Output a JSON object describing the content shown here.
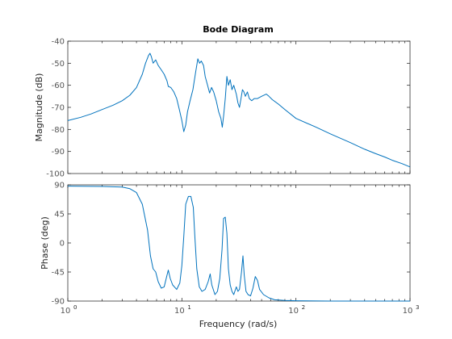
{
  "chart_data": {
    "type": "line",
    "title": "Bode Diagram",
    "xlabel": "Frequency  (rad/s)",
    "x_scale": "log",
    "xlim": [
      1,
      1000
    ],
    "x_ticks": [
      {
        "value": 1,
        "base": "10",
        "exp": "0"
      },
      {
        "value": 10,
        "base": "10",
        "exp": "1"
      },
      {
        "value": 100,
        "base": "10",
        "exp": "2"
      },
      {
        "value": 1000,
        "base": "10",
        "exp": "3"
      }
    ],
    "line_color": "#0072bd",
    "grid": false,
    "legend": "none",
    "panels": [
      {
        "id": "magnitude",
        "ylabel": "Magnitude (dB)",
        "ylim": [
          -100,
          -40
        ],
        "yticks": [
          -40,
          -50,
          -60,
          -70,
          -80,
          -90,
          -100
        ],
        "points": [
          [
            1,
            -76
          ],
          [
            1.3,
            -74.5
          ],
          [
            1.6,
            -73
          ],
          [
            2,
            -71
          ],
          [
            2.5,
            -69
          ],
          [
            3,
            -67
          ],
          [
            3.5,
            -64.5
          ],
          [
            4,
            -61
          ],
          [
            4.5,
            -55
          ],
          [
            4.8,
            -50
          ],
          [
            5.1,
            -46.5
          ],
          [
            5.25,
            -45.5
          ],
          [
            5.4,
            -47
          ],
          [
            5.6,
            -50
          ],
          [
            5.9,
            -48.5
          ],
          [
            6.2,
            -51
          ],
          [
            6.6,
            -53
          ],
          [
            7,
            -55
          ],
          [
            7.4,
            -58
          ],
          [
            7.6,
            -60.5
          ],
          [
            8,
            -61
          ],
          [
            8.5,
            -63
          ],
          [
            9,
            -66
          ],
          [
            9.5,
            -71
          ],
          [
            10,
            -76
          ],
          [
            10.4,
            -81
          ],
          [
            10.8,
            -78
          ],
          [
            11.2,
            -72
          ],
          [
            11.8,
            -67
          ],
          [
            12.5,
            -62
          ],
          [
            13.2,
            -54
          ],
          [
            13.8,
            -48
          ],
          [
            14.3,
            -50
          ],
          [
            14.8,
            -49
          ],
          [
            15.5,
            -51
          ],
          [
            16,
            -56
          ],
          [
            16.8,
            -60
          ],
          [
            17.5,
            -63.5
          ],
          [
            18.2,
            -61
          ],
          [
            19,
            -63
          ],
          [
            20,
            -67
          ],
          [
            21,
            -72
          ],
          [
            22,
            -75
          ],
          [
            22.6,
            -79
          ],
          [
            23.2,
            -74
          ],
          [
            24,
            -66
          ],
          [
            24.8,
            -56
          ],
          [
            25.6,
            -60
          ],
          [
            26.5,
            -57.5
          ],
          [
            27.5,
            -62
          ],
          [
            28.5,
            -60
          ],
          [
            30,
            -64
          ],
          [
            31,
            -68
          ],
          [
            32,
            -70
          ],
          [
            33,
            -66
          ],
          [
            34,
            -62
          ],
          [
            35,
            -63
          ],
          [
            36,
            -65
          ],
          [
            37.5,
            -63
          ],
          [
            39,
            -66
          ],
          [
            41,
            -67
          ],
          [
            43,
            -66
          ],
          [
            46,
            -66
          ],
          [
            50,
            -65
          ],
          [
            55,
            -64
          ],
          [
            58,
            -65
          ],
          [
            62,
            -66.5
          ],
          [
            70,
            -68.5
          ],
          [
            80,
            -71
          ],
          [
            100,
            -75
          ],
          [
            150,
            -79
          ],
          [
            200,
            -82
          ],
          [
            300,
            -86
          ],
          [
            400,
            -89
          ],
          [
            500,
            -91
          ],
          [
            600,
            -92.5
          ],
          [
            700,
            -94
          ],
          [
            850,
            -95.5
          ],
          [
            1000,
            -97
          ]
        ]
      },
      {
        "id": "phase",
        "ylabel": "Phase (deg)",
        "ylim": [
          -90,
          90
        ],
        "yticks": [
          90,
          45,
          0,
          -45,
          -90
        ],
        "points": [
          [
            1,
            88
          ],
          [
            2,
            87.5
          ],
          [
            3,
            86.5
          ],
          [
            3.5,
            84
          ],
          [
            4,
            78
          ],
          [
            4.5,
            60
          ],
          [
            5,
            20
          ],
          [
            5.3,
            -20
          ],
          [
            5.6,
            -40
          ],
          [
            5.9,
            -45
          ],
          [
            6.2,
            -60
          ],
          [
            6.6,
            -70
          ],
          [
            7,
            -68
          ],
          [
            7.4,
            -50
          ],
          [
            7.6,
            -42
          ],
          [
            7.9,
            -55
          ],
          [
            8.3,
            -65
          ],
          [
            9,
            -72
          ],
          [
            9.6,
            -62
          ],
          [
            10,
            -35
          ],
          [
            10.4,
            10
          ],
          [
            10.8,
            60
          ],
          [
            11.4,
            72
          ],
          [
            12,
            72
          ],
          [
            12.6,
            55
          ],
          [
            13,
            10
          ],
          [
            13.5,
            -40
          ],
          [
            14.2,
            -68
          ],
          [
            15,
            -75
          ],
          [
            16,
            -72
          ],
          [
            17,
            -60
          ],
          [
            17.7,
            -48
          ],
          [
            18.3,
            -65
          ],
          [
            19.5,
            -80
          ],
          [
            20.5,
            -75
          ],
          [
            21.5,
            -55
          ],
          [
            22.5,
            -10
          ],
          [
            23.2,
            38
          ],
          [
            24,
            40
          ],
          [
            24.8,
            15
          ],
          [
            25.6,
            -40
          ],
          [
            26.5,
            -65
          ],
          [
            27.5,
            -75
          ],
          [
            28.5,
            -80
          ],
          [
            30,
            -68
          ],
          [
            31,
            -75
          ],
          [
            32,
            -72
          ],
          [
            33.3,
            -45
          ],
          [
            34.3,
            -20
          ],
          [
            35.2,
            -50
          ],
          [
            36.5,
            -75
          ],
          [
            38,
            -80
          ],
          [
            40,
            -82
          ],
          [
            42,
            -70
          ],
          [
            44,
            -52
          ],
          [
            46,
            -58
          ],
          [
            48,
            -72
          ],
          [
            52,
            -80
          ],
          [
            58,
            -85
          ],
          [
            65,
            -88
          ],
          [
            80,
            -89
          ],
          [
            100,
            -89.5
          ],
          [
            200,
            -90
          ],
          [
            1000,
            -90
          ]
        ]
      }
    ]
  }
}
